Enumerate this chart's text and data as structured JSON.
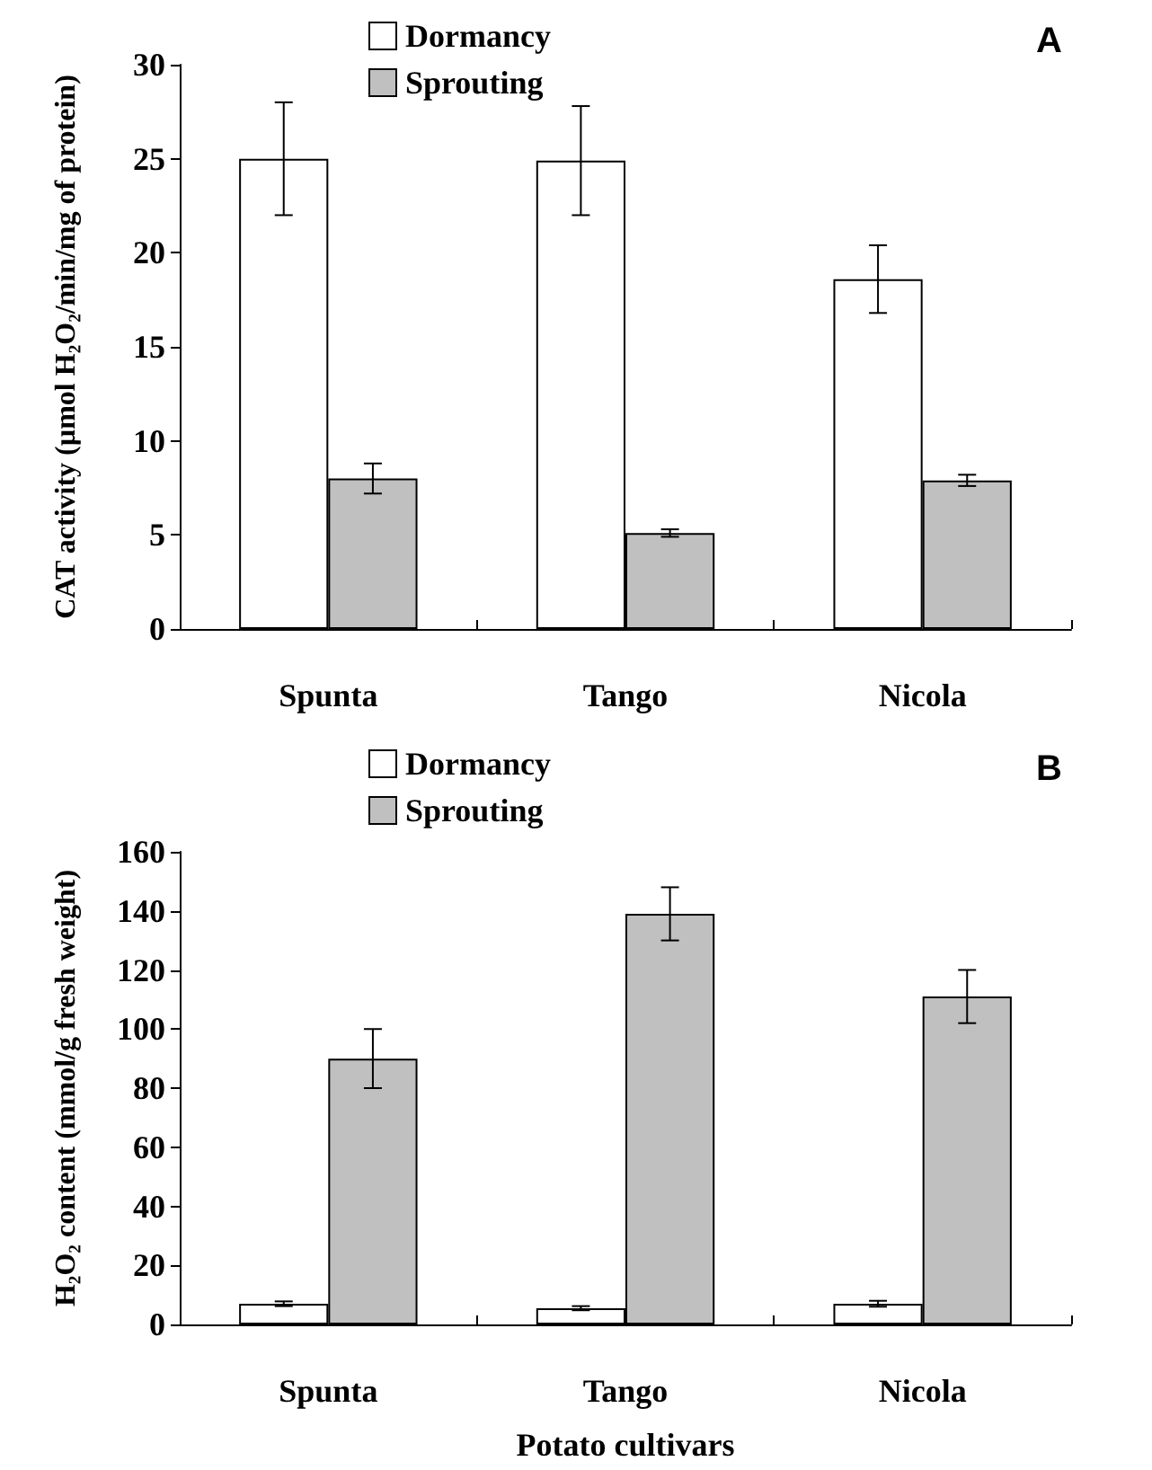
{
  "chart_data": [
    {
      "type": "bar",
      "title": "A",
      "ylabel": "CAT activity (µmol H₂O₂/min/mg of protein)",
      "categories": [
        "Spunta",
        "Tango",
        "Nicola"
      ],
      "series": [
        {
          "name": "Dormancy",
          "color": "#ffffff",
          "values": [
            25,
            24.9,
            18.6
          ],
          "errors": [
            3,
            2.9,
            1.8
          ]
        },
        {
          "name": "Sprouting",
          "color": "#c0c0c0",
          "values": [
            8,
            5.1,
            7.9
          ],
          "errors": [
            0.8,
            0.2,
            0.3
          ]
        }
      ],
      "ylim": [
        0,
        30
      ],
      "yticks": [
        0,
        5,
        10,
        15,
        20,
        25,
        30
      ],
      "grid": false,
      "legend": "top"
    },
    {
      "type": "bar",
      "title": "B",
      "ylabel": "H₂O₂ content (mmol/g fresh weight)",
      "xlabel": "Potato cultivars",
      "categories": [
        "Spunta",
        "Tango",
        "Nicola"
      ],
      "series": [
        {
          "name": "Dormancy",
          "color": "#ffffff",
          "values": [
            7,
            5.5,
            7
          ],
          "errors": [
            0.8,
            0.7,
            1
          ]
        },
        {
          "name": "Sprouting",
          "color": "#c0c0c0",
          "values": [
            90,
            139,
            111
          ],
          "errors": [
            10,
            9,
            9
          ]
        }
      ],
      "ylim": [
        0,
        160
      ],
      "yticks": [
        0,
        20,
        40,
        60,
        80,
        100,
        120,
        140,
        160
      ],
      "grid": false,
      "legend": "top"
    }
  ]
}
